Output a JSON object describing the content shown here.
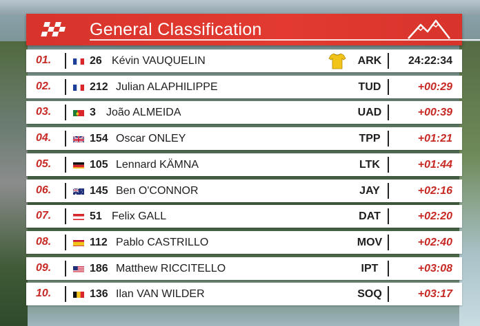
{
  "header": {
    "title": "General Classification",
    "logo_icon": "checkered-flag-icon",
    "decor_icon": "mountain-icon"
  },
  "colors": {
    "accent": "#c72a25",
    "header_red": "#e23a30",
    "row_bg": "#ffffff",
    "jersey_yellow": "#f2c318"
  },
  "riders": [
    {
      "pos": "01.",
      "flag": "france",
      "num": "26",
      "name": "Kévin VAUQUELIN",
      "team": "ARK",
      "time": "24:22:34",
      "leader": true
    },
    {
      "pos": "02.",
      "flag": "france",
      "num": "212",
      "name": "Julian ALAPHILIPPE",
      "team": "TUD",
      "time": "+00:29"
    },
    {
      "pos": "03.",
      "flag": "portugal",
      "num": "3",
      "name": "João ALMEIDA",
      "team": "UAD",
      "time": "+00:39"
    },
    {
      "pos": "04.",
      "flag": "uk",
      "num": "154",
      "name": "Oscar ONLEY",
      "team": "TPP",
      "time": "+01:21"
    },
    {
      "pos": "05.",
      "flag": "germany",
      "num": "105",
      "name": "Lennard KÄMNA",
      "team": "LTK",
      "time": "+01:44"
    },
    {
      "pos": "06.",
      "flag": "australia",
      "num": "145",
      "name": "Ben O'CONNOR",
      "team": "JAY",
      "time": "+02:16"
    },
    {
      "pos": "07.",
      "flag": "austria",
      "num": "51",
      "name": "Felix GALL",
      "team": "DAT",
      "time": "+02:20"
    },
    {
      "pos": "08.",
      "flag": "spain",
      "num": "112",
      "name": "Pablo CASTRILLO",
      "team": "MOV",
      "time": "+02:40"
    },
    {
      "pos": "09.",
      "flag": "usa",
      "num": "186",
      "name": "Matthew RICCITELLO",
      "team": "IPT",
      "time": "+03:08"
    },
    {
      "pos": "10.",
      "flag": "belgium",
      "num": "136",
      "name": "Ilan VAN WILDER",
      "team": "SOQ",
      "time": "+03:17"
    }
  ]
}
